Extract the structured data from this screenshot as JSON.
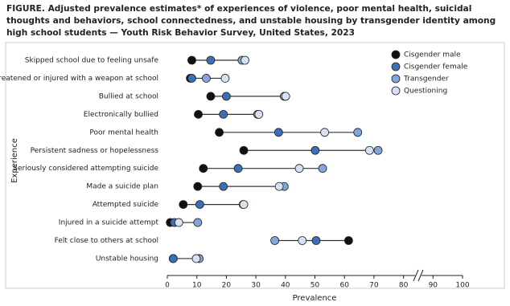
{
  "chart_data": {
    "type": "dot",
    "title": "FIGURE. Adjusted prevalence estimates* of experiences of violence, poor mental health, suicidal thoughts and behaviors, school connectedness, and unstable housing by transgender identity among high school students — Youth Risk Behavior Survey, United States, 2023",
    "xlabel": "Prevalence",
    "ylabel": "Experience",
    "categories": [
      "Skipped school due to feeling unsafe",
      "Threatened or injured with a weapon at school",
      "Bullied at school",
      "Electronically bullied",
      "Poor mental health",
      "Persistent sadness or hopelessness",
      "Seriously considered attempting suicide",
      "Made a suicide plan",
      "Attempted suicide",
      "Injured in a suicide attempt",
      "Felt close to others at school",
      "Unstable housing"
    ],
    "series": [
      {
        "name": "Cisgender male",
        "color": "#111111",
        "values": [
          8.3,
          7.8,
          14.7,
          10.5,
          17.6,
          25.9,
          12.2,
          10.3,
          5.4,
          1,
          61.4,
          2
        ]
      },
      {
        "name": "Cisgender female",
        "color": "#3b6fb6",
        "values": [
          14.7,
          8.3,
          20,
          19,
          37.7,
          50.1,
          24,
          19,
          11,
          2.4,
          50.4,
          2
        ]
      },
      {
        "name": "Transgender",
        "color": "#7fa7d9",
        "values": [
          25.3,
          13.2,
          39.6,
          30.6,
          64.5,
          71.4,
          52.6,
          39.6,
          25.7,
          10.3,
          36.4,
          10.8
        ]
      },
      {
        "name": "Questioning",
        "color": "#d6e2f1",
        "values": [
          26.3,
          19.6,
          40.1,
          31,
          53.3,
          68.5,
          44.7,
          37.9,
          25.9,
          3.9,
          45.7,
          9.8
        ]
      }
    ],
    "xlim": [
      0,
      100
    ],
    "xticks": [
      0,
      10,
      20,
      30,
      40,
      50,
      60,
      70,
      80,
      90,
      100
    ],
    "axis_break": true,
    "legend": "upper right"
  }
}
